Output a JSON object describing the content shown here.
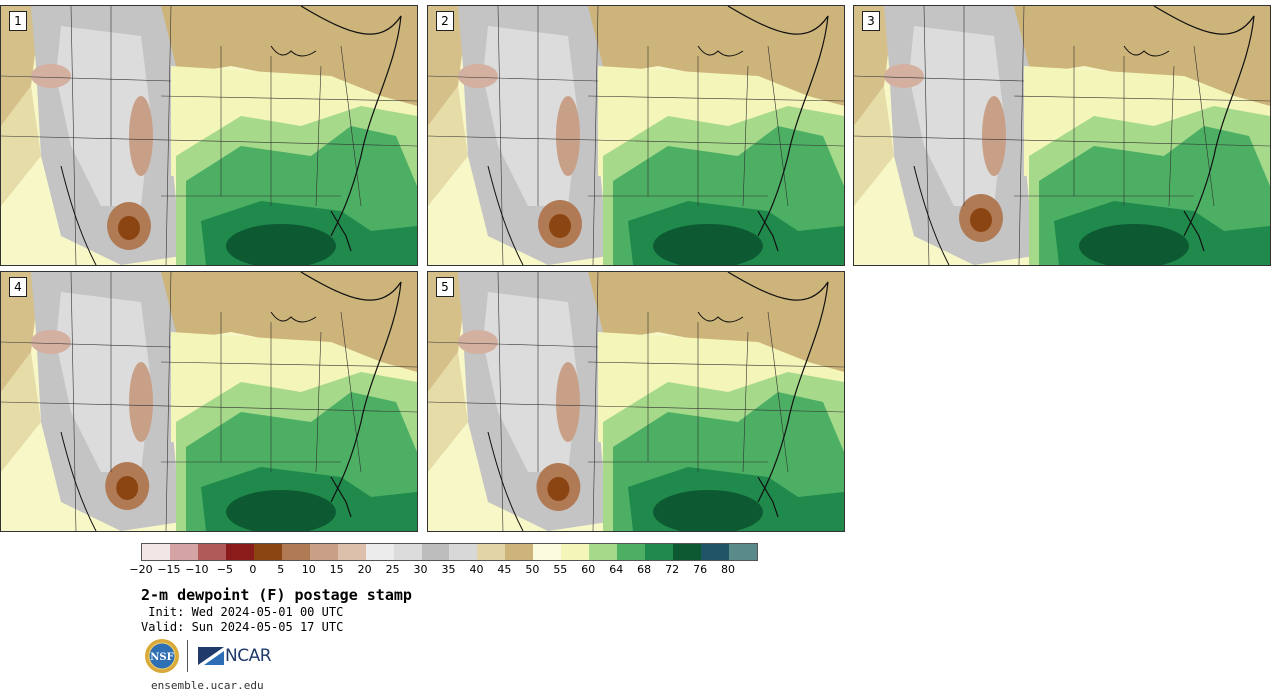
{
  "panels": [
    {
      "label": "1"
    },
    {
      "label": "2"
    },
    {
      "label": "3"
    },
    {
      "label": "4"
    },
    {
      "label": "5"
    }
  ],
  "colorbar": {
    "colors": [
      "#f2e6e6",
      "#d4a3a3",
      "#b05a5a",
      "#8b1a1a",
      "#8b4513",
      "#b07a55",
      "#c8a088",
      "#dcc0ac",
      "#ececec",
      "#dcdcdc",
      "#bdbdbd",
      "#d8d8d8",
      "#e3d4a8",
      "#cdb47a",
      "#fbfbe0",
      "#f4f5b8",
      "#a6d98a",
      "#4caf64",
      "#1f8a4c",
      "#0d5a32",
      "#1f5566",
      "#5a8a8a"
    ],
    "tick_labels": [
      "−20",
      "−15",
      "−10",
      "−5",
      "0",
      "5",
      "10",
      "15",
      "20",
      "25",
      "30",
      "35",
      "40",
      "45",
      "50",
      "55",
      "60",
      "64",
      "68",
      "72",
      "76",
      "80"
    ]
  },
  "title": "2-m dewpoint (F) postage stamp",
  "init": " Init: Wed 2024-05-01 00 UTC",
  "valid": "Valid: Sun 2024-05-05 17 UTC",
  "logos": {
    "nsf": "NSF",
    "ncar": "NCAR"
  },
  "footer_url": "ensemble.ucar.edu"
}
